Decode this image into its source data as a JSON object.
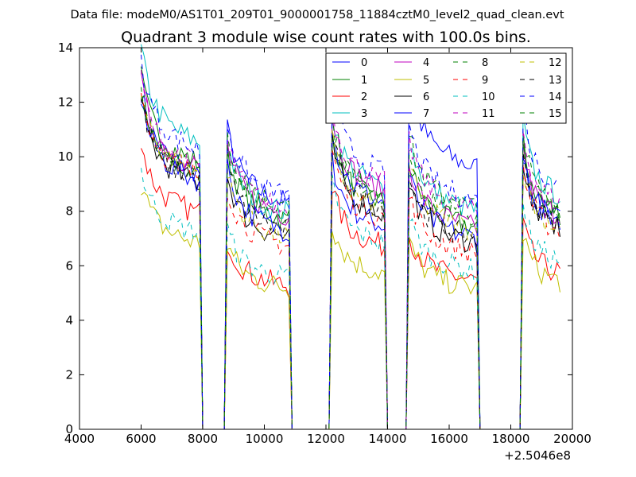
{
  "suptitle": "Data file: modeM0/AS1T01_209T01_9000001758_11884cztM0_level2_quad_clean.evt",
  "chart_data": {
    "type": "line",
    "title": "Quadrant 3 module wise count rates with 100.0s bins.",
    "xlabel": "",
    "ylabel": "",
    "x_offset_label": "+2.5046e8",
    "xlim": [
      4000,
      20000
    ],
    "ylim": [
      0,
      14
    ],
    "xticks": [
      "4000",
      "6000",
      "8000",
      "10000",
      "12000",
      "14000",
      "16000",
      "18000",
      "20000"
    ],
    "yticks": [
      "0",
      "2",
      "4",
      "6",
      "8",
      "10",
      "12",
      "14"
    ],
    "grid": false,
    "legend_position": "top-right",
    "x_start": 6000,
    "x_step": 100,
    "segments": [
      [
        6000,
        7900
      ],
      [
        8800,
        10800
      ],
      [
        12200,
        13900
      ],
      [
        14700,
        16900
      ],
      [
        18400,
        19600
      ]
    ],
    "series": [
      {
        "name": "0",
        "color": "#0000ff",
        "dash": "solid",
        "levels": [
          10.2,
          9.0,
          8.1,
          10.4,
          8.3
        ]
      },
      {
        "name": "1",
        "color": "#008000",
        "dash": "solid",
        "levels": [
          10.6,
          8.3,
          9.0,
          8.0,
          8.6
        ]
      },
      {
        "name": "2",
        "color": "#ff0000",
        "dash": "solid",
        "levels": [
          8.6,
          5.7,
          7.3,
          5.9,
          6.2
        ]
      },
      {
        "name": "3",
        "color": "#00bfbf",
        "dash": "solid",
        "levels": [
          11.4,
          8.6,
          9.6,
          8.7,
          9.3
        ]
      },
      {
        "name": "4",
        "color": "#bf00bf",
        "dash": "solid",
        "levels": [
          10.4,
          8.5,
          9.5,
          8.0,
          8.5
        ]
      },
      {
        "name": "5",
        "color": "#bfbf00",
        "dash": "solid",
        "levels": [
          7.4,
          5.6,
          6.2,
          5.6,
          5.9
        ]
      },
      {
        "name": "6",
        "color": "#000000",
        "dash": "solid",
        "levels": [
          9.8,
          7.6,
          8.6,
          7.4,
          8.0
        ]
      },
      {
        "name": "7",
        "color": "#0000ff",
        "dash": "solid",
        "levels": [
          9.9,
          7.9,
          9.0,
          7.6,
          8.3
        ]
      },
      {
        "name": "8",
        "color": "#008000",
        "dash": "dashed",
        "levels": [
          10.3,
          8.6,
          9.4,
          8.8,
          8.9
        ]
      },
      {
        "name": "9",
        "color": "#ff0000",
        "dash": "dashed",
        "levels": [
          10.1,
          7.3,
          8.4,
          7.0,
          7.9
        ]
      },
      {
        "name": "10",
        "color": "#00bfbf",
        "dash": "dashed",
        "levels": [
          7.8,
          6.0,
          7.4,
          6.3,
          6.7
        ]
      },
      {
        "name": "11",
        "color": "#bf00bf",
        "dash": "dashed",
        "levels": [
          10.5,
          8.7,
          9.8,
          8.7,
          9.0
        ]
      },
      {
        "name": "12",
        "color": "#bfbf00",
        "dash": "dashed",
        "levels": [
          10.2,
          7.6,
          8.7,
          7.9,
          8.0
        ]
      },
      {
        "name": "13",
        "color": "#000000",
        "dash": "dashed",
        "levels": [
          9.9,
          7.9,
          8.8,
          7.6,
          8.1
        ]
      },
      {
        "name": "14",
        "color": "#0000ff",
        "dash": "dashed",
        "levels": [
          11.1,
          9.2,
          10.2,
          9.1,
          9.7
        ]
      },
      {
        "name": "15",
        "color": "#008000",
        "dash": "dashed",
        "levels": [
          10.2,
          8.8,
          9.1,
          8.4,
          8.7
        ]
      }
    ]
  }
}
